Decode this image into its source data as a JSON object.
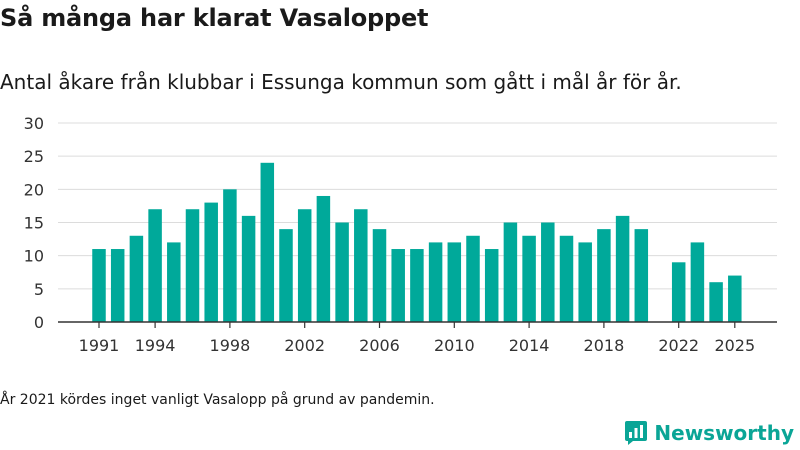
{
  "header": {
    "title": "Så många har klarat Vasaloppet",
    "subtitle": "Antal åkare från klubbar i Essunga kommun som gått i mål år för år."
  },
  "footer": {
    "note": "År 2021 kördes inget vanligt Vasalopp på grund av pandemin.",
    "brand": "Newsworthy",
    "brand_icon": "newsworthy-logo-icon"
  },
  "chart_data": {
    "type": "bar",
    "title": "Så många har klarat Vasaloppet",
    "subtitle": "Antal åkare från klubbar i Essunga kommun som gått i mål år för år.",
    "xlabel": "",
    "ylabel": "",
    "categories": [
      1991,
      1992,
      1993,
      1994,
      1995,
      1996,
      1997,
      1998,
      1999,
      2000,
      2001,
      2002,
      2003,
      2004,
      2005,
      2006,
      2007,
      2008,
      2009,
      2010,
      2011,
      2012,
      2013,
      2014,
      2015,
      2016,
      2017,
      2018,
      2019,
      2020,
      2021,
      2022,
      2023,
      2024,
      2025
    ],
    "values": [
      11,
      11,
      13,
      17,
      12,
      17,
      18,
      20,
      16,
      24,
      14,
      17,
      19,
      15,
      17,
      14,
      11,
      11,
      12,
      12,
      13,
      11,
      15,
      13,
      15,
      13,
      12,
      14,
      16,
      14,
      null,
      9,
      12,
      6,
      7
    ],
    "x_tick_labels": [
      "1991",
      "1994",
      "1998",
      "2002",
      "2006",
      "2010",
      "2014",
      "2018",
      "2022",
      "2025"
    ],
    "y_ticks": [
      0,
      5,
      10,
      15,
      20,
      25,
      30
    ],
    "ylim": [
      0,
      30
    ],
    "grid": "horizontal",
    "bar_color": "#00a99a",
    "legend": "none"
  }
}
